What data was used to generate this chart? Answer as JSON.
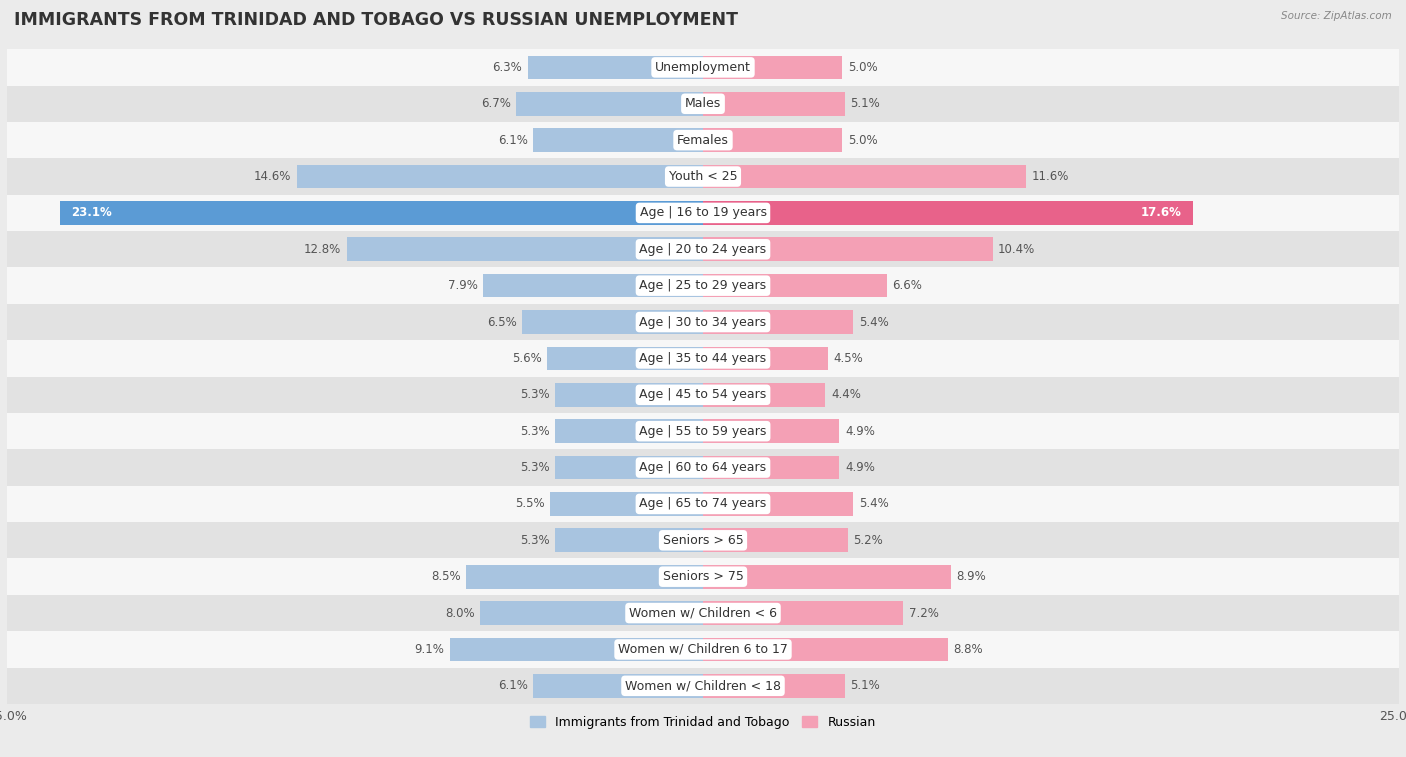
{
  "title": "IMMIGRANTS FROM TRINIDAD AND TOBAGO VS RUSSIAN UNEMPLOYMENT",
  "source": "Source: ZipAtlas.com",
  "categories": [
    "Unemployment",
    "Males",
    "Females",
    "Youth < 25",
    "Age | 16 to 19 years",
    "Age | 20 to 24 years",
    "Age | 25 to 29 years",
    "Age | 30 to 34 years",
    "Age | 35 to 44 years",
    "Age | 45 to 54 years",
    "Age | 55 to 59 years",
    "Age | 60 to 64 years",
    "Age | 65 to 74 years",
    "Seniors > 65",
    "Seniors > 75",
    "Women w/ Children < 6",
    "Women w/ Children 6 to 17",
    "Women w/ Children < 18"
  ],
  "left_values": [
    6.3,
    6.7,
    6.1,
    14.6,
    23.1,
    12.8,
    7.9,
    6.5,
    5.6,
    5.3,
    5.3,
    5.3,
    5.5,
    5.3,
    8.5,
    8.0,
    9.1,
    6.1
  ],
  "right_values": [
    5.0,
    5.1,
    5.0,
    11.6,
    17.6,
    10.4,
    6.6,
    5.4,
    4.5,
    4.4,
    4.9,
    4.9,
    5.4,
    5.2,
    8.9,
    7.2,
    8.8,
    5.1
  ],
  "left_color": "#a8c4e0",
  "right_color": "#f4a0b5",
  "left_highlight_color": "#5b9bd5",
  "right_highlight_color": "#e8628a",
  "highlight_index": 4,
  "x_max": 25.0,
  "bar_height": 0.65,
  "bg_color": "#ebebeb",
  "row_color_even": "#f7f7f7",
  "row_color_odd": "#e2e2e2",
  "legend_left": "Immigrants from Trinidad and Tobago",
  "legend_right": "Russian",
  "title_fontsize": 12.5,
  "label_fontsize": 9,
  "value_fontsize": 8.5,
  "axis_label_fontsize": 9
}
